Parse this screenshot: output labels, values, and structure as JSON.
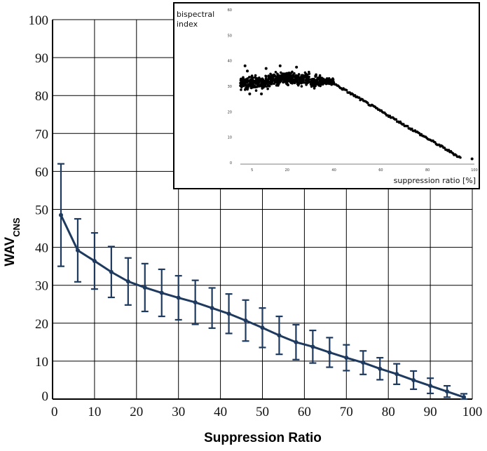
{
  "chart_data": [
    {
      "type": "line",
      "xlabel": "Suppression Ratio",
      "ylabel_main": "WAV",
      "ylabel_sub": "CNS",
      "xlim": [
        0,
        100
      ],
      "ylim": [
        0,
        100
      ],
      "xticks": [
        "0",
        "10",
        "20",
        "30",
        "40",
        "50",
        "60",
        "70",
        "80",
        "90",
        "100"
      ],
      "yticks": [
        "0",
        "10",
        "20",
        "30",
        "40",
        "50",
        "60",
        "70",
        "80",
        "90",
        "100"
      ],
      "grid": true,
      "color": "#1f3a5f",
      "series": [
        {
          "x": [
            2,
            6,
            10,
            14,
            18,
            22,
            26,
            30,
            34,
            38,
            42,
            46,
            50,
            54,
            58,
            62,
            66,
            70,
            74,
            78,
            82,
            86,
            90,
            94,
            98
          ],
          "y": [
            48.5,
            39.2,
            36.4,
            33.5,
            31.0,
            29.4,
            28.0,
            26.7,
            25.5,
            24.0,
            22.5,
            20.7,
            18.8,
            16.8,
            15.0,
            13.8,
            12.3,
            10.9,
            9.6,
            8.0,
            6.6,
            5.0,
            3.5,
            2.0,
            0.5
          ],
          "err": [
            13.5,
            8.3,
            7.4,
            6.7,
            6.2,
            6.3,
            6.2,
            5.8,
            5.8,
            5.3,
            5.2,
            5.4,
            5.2,
            5.0,
            4.6,
            4.3,
            3.9,
            3.4,
            3.1,
            2.9,
            2.7,
            2.4,
            2.0,
            1.5,
            0.9
          ]
        }
      ]
    },
    {
      "type": "scatter",
      "ylabel_lines": [
        "bispectral",
        "index"
      ],
      "xlabel": "suppression ratio [%]",
      "xlim": [
        0,
        100
      ],
      "ylim": [
        0,
        60
      ],
      "xticks": [
        "5",
        "20",
        "40",
        "60",
        "80",
        "100"
      ],
      "ytick_labels": [
        "0",
        "10",
        "20",
        "30",
        "40",
        "50",
        "60"
      ],
      "color": "#000000",
      "cluster": {
        "x_range": [
          0,
          40
        ],
        "y_center": 33,
        "y_spread": 3.5
      },
      "trend_line": {
        "x": [
          40,
          94
        ],
        "y": [
          31,
          2
        ]
      },
      "outliers": [
        [
          3,
          36
        ],
        [
          11,
          37
        ],
        [
          17,
          38
        ],
        [
          24,
          37.5
        ],
        [
          9,
          27
        ],
        [
          4,
          27
        ],
        [
          2,
          38
        ],
        [
          99,
          1.5
        ]
      ]
    }
  ]
}
